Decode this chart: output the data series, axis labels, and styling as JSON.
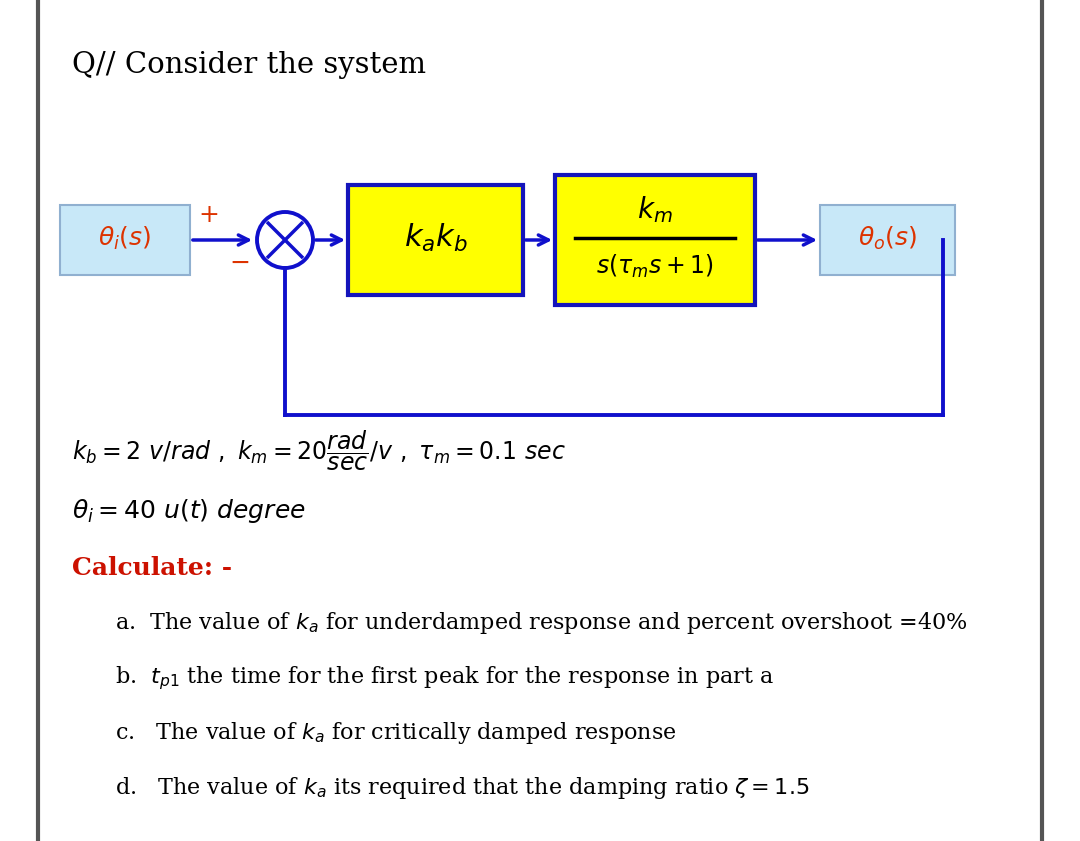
{
  "title": "Q// Consider the system",
  "background_color": "#ffffff",
  "theta_i_text": "$\\theta_i(s)$",
  "theta_o_text": "$\\theta_o(s)$",
  "kakb_text": "$k_ak_b$",
  "km_top_text": "$k_m$",
  "km_bot_text": "$s(\\tau_m s + 1)$",
  "plus_sign": "$+$",
  "minus_sign": "$-$",
  "params_text": "$k_b = 2\\ v/rad\\ ,\\ k_m = 20\\dfrac{rad}{sec}/v\\ ,\\ \\tau_m = 0.1\\ sec$",
  "theta_i_val": "$\\theta_i = 40\\ u(t)\\ degree$",
  "calculate_label": "Calculate: -",
  "item_a": "a.  The value of $\\boldsymbol{k_a}$ for underdamped response and percent overshoot =40%",
  "item_b": "b.  $t_{p1}$ the time for the first peak for the response in part a",
  "item_c": "c.   The value of $\\boldsymbol{k_a}$ for critically damped response",
  "item_d": "d.   The value of $\\boldsymbol{k_a}$ its required that the damping ratio $\\zeta = 1.5$",
  "blue_color": "#1010cc",
  "orange_red_color": "#dd3300",
  "yellow_fill": "#ffff00",
  "blue_box_edge": "#1515bb",
  "light_blue_fill": "#c8e8f8",
  "light_blue_edge": "#90b0d0",
  "calculate_color": "#cc1100",
  "text_color": "#000000",
  "border_color": "#555555",
  "x_symbol_color": "#1010cc"
}
